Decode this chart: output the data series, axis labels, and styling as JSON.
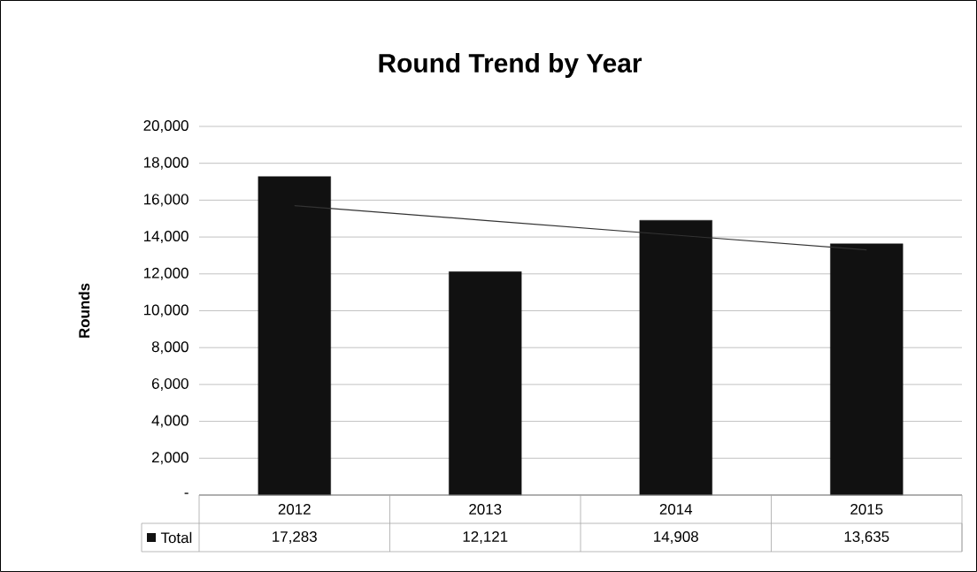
{
  "chart_data": {
    "type": "bar",
    "title": "Round Trend by Year",
    "ylabel": "Rounds",
    "categories": [
      "2012",
      "2013",
      "2014",
      "2015"
    ],
    "series": [
      {
        "name": "Total",
        "color": "#111111",
        "values": [
          17283,
          12121,
          14908,
          13635
        ],
        "value_labels": [
          "17,283",
          "12,121",
          "14,908",
          "13,635"
        ]
      },
      {
        "type": "line",
        "color": "#333333",
        "values": [
          15700,
          14900,
          14100,
          13300
        ]
      }
    ],
    "ylim": [
      0,
      20000
    ],
    "yticks": [
      {
        "value": 0,
        "label": "-"
      },
      {
        "value": 2000,
        "label": "2,000"
      },
      {
        "value": 4000,
        "label": "4,000"
      },
      {
        "value": 6000,
        "label": "6,000"
      },
      {
        "value": 8000,
        "label": "8,000"
      },
      {
        "value": 10000,
        "label": "10,000"
      },
      {
        "value": 12000,
        "label": "12,000"
      },
      {
        "value": 14000,
        "label": "14,000"
      },
      {
        "value": 16000,
        "label": "16,000"
      },
      {
        "value": 18000,
        "label": "18,000"
      },
      {
        "value": 20000,
        "label": "20,000"
      }
    ],
    "grid": "y"
  }
}
